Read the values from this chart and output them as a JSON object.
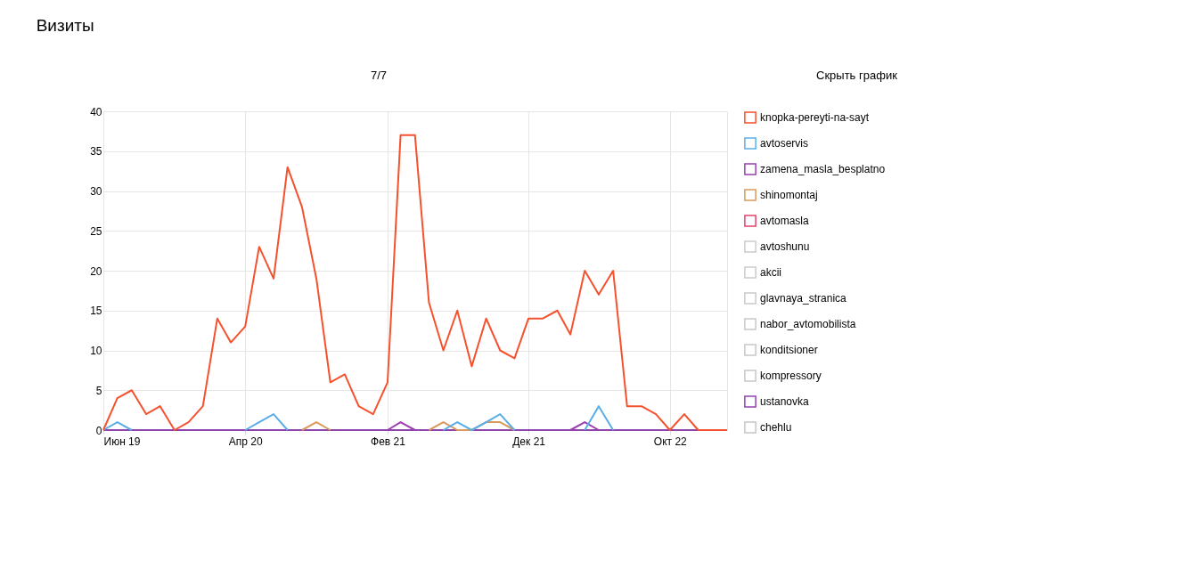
{
  "chart_data": {
    "type": "line",
    "title": "Визиты",
    "annotations": [
      "7/7",
      "Скрыть график"
    ],
    "x": [
      "2019-06",
      "2019-07",
      "2019-08",
      "2019-09",
      "2019-10",
      "2019-11",
      "2019-12",
      "2020-01",
      "2020-02",
      "2020-03",
      "2020-04",
      "2020-05",
      "2020-06",
      "2020-07",
      "2020-08",
      "2020-09",
      "2020-10",
      "2020-11",
      "2020-12",
      "2021-01",
      "2021-02",
      "2021-03",
      "2021-04",
      "2021-05",
      "2021-06",
      "2021-07",
      "2021-08",
      "2021-09",
      "2021-10",
      "2021-11",
      "2021-12",
      "2022-01",
      "2022-02",
      "2022-03",
      "2022-04",
      "2022-05",
      "2022-06",
      "2022-07",
      "2022-08",
      "2022-09",
      "2022-10",
      "2022-11",
      "2022-12",
      "2023-01",
      "2023-02"
    ],
    "series": [
      {
        "name": "knopka-pereyti-na-sayt",
        "color": "#f5512e",
        "values": [
          0,
          4,
          5,
          2,
          3,
          0,
          1,
          3,
          14,
          11,
          13,
          23,
          19,
          33,
          28,
          19,
          6,
          7,
          3,
          2,
          6,
          37,
          37,
          16,
          10,
          15,
          8,
          14,
          10,
          9,
          14,
          14,
          15,
          12,
          20,
          17,
          20,
          3,
          3,
          2,
          0,
          2,
          0,
          0,
          0
        ]
      },
      {
        "name": "avtoservis",
        "color": "#5aaee8",
        "values": [
          0,
          1,
          0,
          null,
          null,
          null,
          null,
          null,
          null,
          null,
          0,
          1,
          2,
          0,
          null,
          null,
          null,
          null,
          null,
          null,
          null,
          null,
          null,
          null,
          0,
          1,
          0,
          1,
          2,
          0,
          null,
          null,
          null,
          null,
          0,
          3,
          0,
          null,
          null,
          null,
          null,
          null,
          null,
          null,
          null
        ]
      },
      {
        "name": "zamena_masla_besplatno",
        "color": "#9b3eb0",
        "values": [
          null,
          null,
          null,
          null,
          null,
          null,
          null,
          null,
          null,
          null,
          null,
          null,
          null,
          null,
          null,
          null,
          null,
          null,
          null,
          null,
          0,
          1,
          0,
          null,
          null,
          null,
          null,
          null,
          null,
          null,
          null,
          null,
          null,
          0,
          1,
          0,
          null,
          null,
          null,
          null,
          null,
          null,
          null,
          null,
          null
        ]
      },
      {
        "name": "shinomontaj",
        "color": "#d99a5e",
        "values": [
          null,
          null,
          null,
          null,
          null,
          null,
          null,
          null,
          null,
          null,
          null,
          null,
          null,
          null,
          0,
          1,
          0,
          null,
          null,
          null,
          null,
          null,
          null,
          0,
          1,
          0,
          0,
          1,
          1,
          0,
          null,
          null,
          null,
          null,
          null,
          null,
          null,
          null,
          null,
          null,
          null,
          null,
          null,
          null,
          null
        ]
      },
      {
        "name": "avtomasla",
        "color": "#e8416b",
        "values": [
          null,
          null,
          null,
          null,
          null,
          null,
          null,
          null,
          null,
          null,
          null,
          null,
          null,
          null,
          null,
          null,
          null,
          null,
          null,
          null,
          null,
          null,
          null,
          null,
          null,
          null,
          null,
          null,
          null,
          null,
          null,
          null,
          null,
          null,
          null,
          null,
          null,
          null,
          null,
          null,
          null,
          null,
          null,
          null,
          null
        ]
      },
      {
        "name": "avtoshunu",
        "color": "#cccccc",
        "values": [
          null,
          null,
          null,
          null,
          null,
          null,
          null,
          null,
          null,
          null,
          null,
          null,
          null,
          null,
          null,
          null,
          null,
          null,
          null,
          null,
          null,
          null,
          null,
          null,
          null,
          null,
          null,
          null,
          null,
          null,
          null,
          null,
          null,
          null,
          null,
          null,
          null,
          null,
          null,
          null,
          null,
          null,
          null,
          null,
          null
        ]
      },
      {
        "name": "akcii",
        "color": "#cbcbcb",
        "values": [
          null,
          null,
          null,
          null,
          null,
          null,
          null,
          null,
          null,
          null,
          null,
          null,
          null,
          null,
          null,
          null,
          null,
          null,
          null,
          null,
          null,
          null,
          null,
          null,
          null,
          null,
          null,
          null,
          null,
          null,
          null,
          null,
          null,
          null,
          null,
          null,
          null,
          null,
          null,
          null,
          null,
          null,
          null,
          null,
          null
        ]
      },
      {
        "name": "glavnaya_stranica",
        "color": "#cacaca",
        "values": [
          null,
          null,
          null,
          null,
          null,
          null,
          null,
          null,
          null,
          null,
          null,
          null,
          null,
          null,
          null,
          null,
          null,
          null,
          null,
          null,
          null,
          null,
          null,
          null,
          null,
          null,
          null,
          null,
          null,
          null,
          null,
          null,
          null,
          null,
          null,
          null,
          null,
          null,
          null,
          null,
          null,
          null,
          null,
          null,
          null
        ]
      },
      {
        "name": "nabor_avtomobilista",
        "color": "#c9c9c9",
        "values": [
          null,
          null,
          null,
          null,
          null,
          null,
          null,
          null,
          null,
          null,
          null,
          null,
          null,
          null,
          null,
          null,
          null,
          null,
          null,
          null,
          null,
          null,
          null,
          null,
          null,
          null,
          null,
          null,
          null,
          null,
          null,
          null,
          null,
          null,
          null,
          null,
          null,
          null,
          null,
          null,
          null,
          null,
          null,
          null,
          null
        ]
      },
      {
        "name": "konditsioner",
        "color": "#c8c8c8",
        "values": [
          null,
          null,
          null,
          null,
          null,
          null,
          null,
          null,
          null,
          null,
          null,
          null,
          null,
          null,
          null,
          null,
          null,
          null,
          null,
          null,
          null,
          null,
          null,
          null,
          null,
          null,
          null,
          null,
          null,
          null,
          null,
          null,
          null,
          null,
          null,
          null,
          null,
          null,
          null,
          null,
          null,
          null,
          null,
          null,
          null
        ]
      },
      {
        "name": "kompressory",
        "color": "#c7c7c7",
        "values": [
          null,
          null,
          null,
          null,
          null,
          null,
          null,
          null,
          null,
          null,
          null,
          null,
          null,
          null,
          null,
          null,
          null,
          null,
          null,
          null,
          null,
          null,
          null,
          null,
          null,
          null,
          null,
          null,
          null,
          null,
          null,
          null,
          null,
          null,
          null,
          null,
          null,
          null,
          null,
          null,
          null,
          null,
          null,
          null,
          null
        ]
      },
      {
        "name": "ustanovka",
        "color": "#8e44ad",
        "values": [
          0,
          0,
          0,
          0,
          0,
          0,
          0,
          0,
          0,
          0,
          0,
          0,
          0,
          0,
          0,
          0,
          0,
          0,
          0,
          0,
          0,
          0,
          0,
          0,
          0,
          0,
          0,
          0,
          0,
          0,
          0,
          0,
          0,
          0,
          0,
          0,
          0,
          0,
          0,
          0,
          0,
          0,
          0,
          0,
          0
        ]
      },
      {
        "name": "chehlu",
        "color": "#c6c6c6",
        "values": [
          null,
          null,
          null,
          null,
          null,
          null,
          null,
          null,
          null,
          null,
          null,
          null,
          null,
          null,
          null,
          null,
          null,
          null,
          null,
          null,
          null,
          null,
          null,
          null,
          null,
          null,
          null,
          null,
          null,
          null,
          null,
          null,
          null,
          null,
          null,
          null,
          null,
          null,
          null,
          null,
          null,
          null,
          null,
          null,
          null
        ]
      }
    ],
    "xlim": [
      "2019-06",
      "2023-02"
    ],
    "xticks": [
      {
        "value": "2019-06",
        "label": "Июн 19"
      },
      {
        "value": "2020-04",
        "label": "Апр 20"
      },
      {
        "value": "2021-02",
        "label": "Фев 21"
      },
      {
        "value": "2021-12",
        "label": "Дек 21"
      },
      {
        "value": "2022-10",
        "label": "Окт 22"
      }
    ],
    "ylim": [
      0,
      40
    ],
    "yticks": [
      0,
      5,
      10,
      15,
      20,
      25,
      30,
      35,
      40
    ],
    "grid": true,
    "legend": "right",
    "marker": "none",
    "line_style": "solid"
  }
}
